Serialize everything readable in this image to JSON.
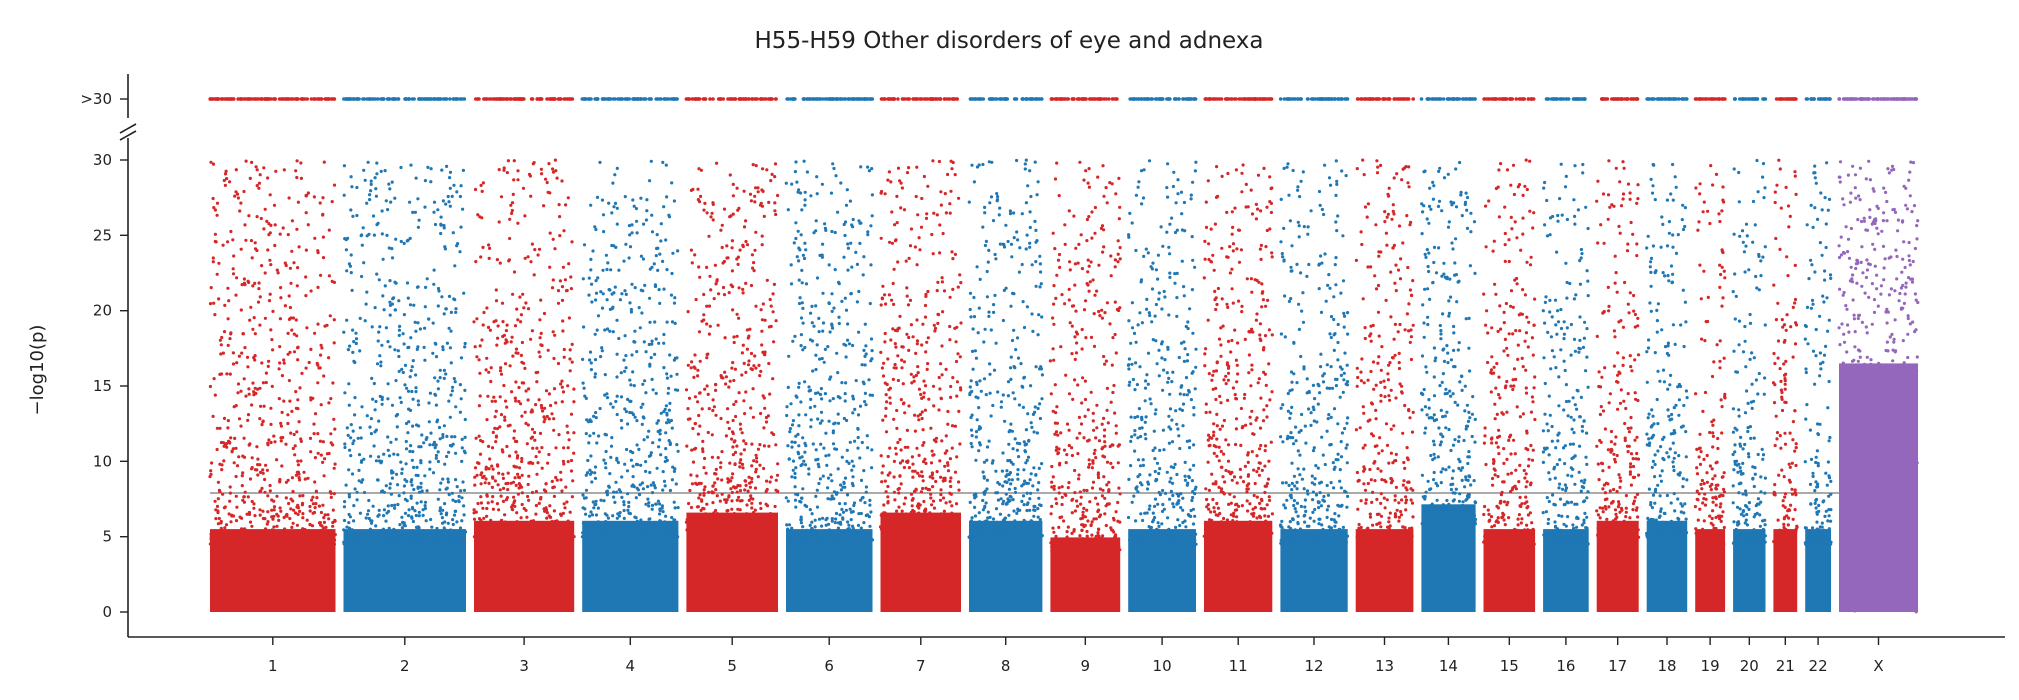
{
  "chart_data": {
    "type": "scatter",
    "title": "H55-H59 Other disorders of eye and adnexa",
    "ylabel": "−log10(p)",
    "ylim": [
      0,
      30
    ],
    "yticks": [
      0,
      5,
      10,
      15,
      20,
      25,
      30
    ],
    "overflow_tick_label": ">30",
    "overflow_threshold": 30,
    "significance_line": 7.9,
    "grid": false,
    "legend": "none",
    "colors": {
      "odd": "#d62728",
      "even": "#1f77b4",
      "X": "#9467bd"
    },
    "chromosomes": [
      {
        "name": "1",
        "length": 248,
        "label_pos": 0.5,
        "max_dense": 10,
        "color": "odd"
      },
      {
        "name": "2",
        "length": 242,
        "label_pos": 0.5,
        "max_dense": 10,
        "color": "even"
      },
      {
        "name": "3",
        "length": 198,
        "label_pos": 0.5,
        "max_dense": 11,
        "color": "odd"
      },
      {
        "name": "4",
        "length": 190,
        "label_pos": 0.5,
        "max_dense": 11,
        "color": "even"
      },
      {
        "name": "5",
        "length": 181,
        "label_pos": 0.5,
        "max_dense": 12,
        "color": "odd"
      },
      {
        "name": "6",
        "length": 171,
        "label_pos": 0.5,
        "max_dense": 10,
        "color": "even"
      },
      {
        "name": "7",
        "length": 159,
        "label_pos": 0.5,
        "max_dense": 12,
        "color": "odd"
      },
      {
        "name": "8",
        "length": 145,
        "label_pos": 0.5,
        "max_dense": 11,
        "color": "even"
      },
      {
        "name": "9",
        "length": 138,
        "label_pos": 0.5,
        "max_dense": 9,
        "color": "odd"
      },
      {
        "name": "10",
        "length": 134,
        "label_pos": 0.5,
        "max_dense": 10,
        "color": "even"
      },
      {
        "name": "11",
        "length": 135,
        "label_pos": 0.5,
        "max_dense": 11,
        "color": "odd"
      },
      {
        "name": "12",
        "length": 133,
        "label_pos": 0.5,
        "max_dense": 10,
        "color": "even"
      },
      {
        "name": "13",
        "length": 114,
        "label_pos": 0.5,
        "max_dense": 10,
        "color": "odd"
      },
      {
        "name": "14",
        "length": 107,
        "label_pos": 0.5,
        "max_dense": 13,
        "color": "even"
      },
      {
        "name": "15",
        "length": 102,
        "label_pos": 0.5,
        "max_dense": 10,
        "color": "odd"
      },
      {
        "name": "16",
        "length": 90,
        "label_pos": 0.5,
        "max_dense": 10,
        "color": "even"
      },
      {
        "name": "17",
        "length": 83,
        "label_pos": 0.5,
        "max_dense": 11,
        "color": "odd"
      },
      {
        "name": "18",
        "length": 80,
        "label_pos": 0.5,
        "max_dense": 11,
        "color": "even"
      },
      {
        "name": "19",
        "length": 59,
        "label_pos": 0.5,
        "max_dense": 10,
        "color": "odd"
      },
      {
        "name": "20",
        "length": 64,
        "label_pos": 0.5,
        "max_dense": 10,
        "color": "even"
      },
      {
        "name": "21",
        "length": 47,
        "label_pos": 0.5,
        "max_dense": 10,
        "color": "odd"
      },
      {
        "name": "22",
        "length": 51,
        "label_pos": 0.5,
        "max_dense": 10,
        "color": "even"
      },
      {
        "name": "X",
        "length": 156,
        "label_pos": 0.5,
        "max_dense": 30,
        "color": "X"
      }
    ]
  }
}
